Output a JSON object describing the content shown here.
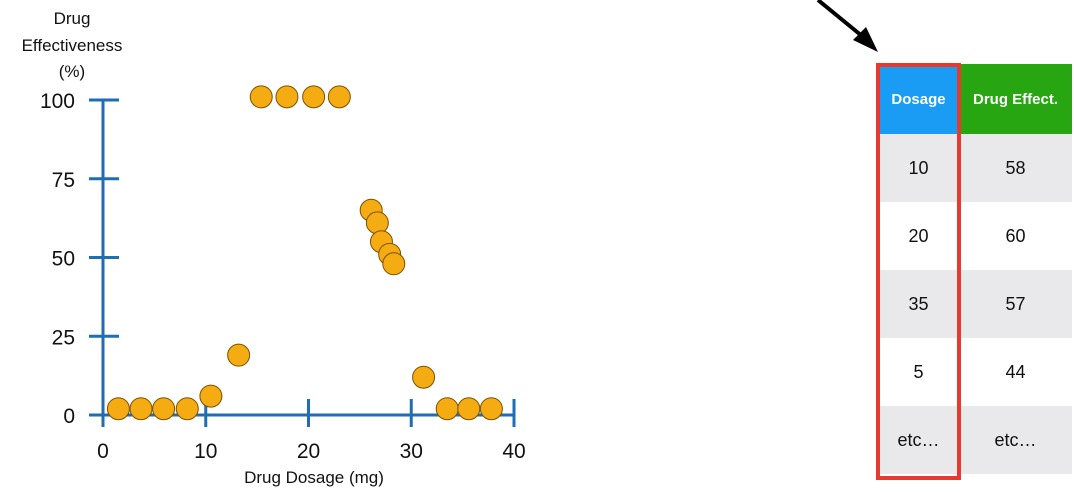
{
  "colors": {
    "axis": "#1f6db5",
    "point_fill": "#f5ab12",
    "point_stroke": "#7a5200",
    "dosage_header_bg": "#1a9cf5",
    "effect_header_bg": "#27a612",
    "highlight_border": "#e53a2c",
    "row_shaded": "#e9e9ec",
    "arrow": "#000000"
  },
  "chart_data": {
    "type": "scatter",
    "xlabel": "Drug Dosage (mg)",
    "ylabel_lines": [
      "Drug",
      "Effectiveness",
      "(%)"
    ],
    "xlim": [
      0,
      40
    ],
    "ylim": [
      0,
      100
    ],
    "x_ticks": [
      0,
      10,
      20,
      30,
      40
    ],
    "y_ticks": [
      0,
      25,
      50,
      75,
      100
    ],
    "grid": false,
    "points": [
      {
        "x": 1.5,
        "y": 2
      },
      {
        "x": 3.7,
        "y": 2
      },
      {
        "x": 5.9,
        "y": 2
      },
      {
        "x": 8.2,
        "y": 2
      },
      {
        "x": 10.5,
        "y": 6
      },
      {
        "x": 13.2,
        "y": 19
      },
      {
        "x": 15.4,
        "y": 101
      },
      {
        "x": 17.9,
        "y": 101
      },
      {
        "x": 20.5,
        "y": 101
      },
      {
        "x": 23.0,
        "y": 101
      },
      {
        "x": 26.1,
        "y": 65
      },
      {
        "x": 26.7,
        "y": 61
      },
      {
        "x": 27.1,
        "y": 55
      },
      {
        "x": 27.9,
        "y": 51
      },
      {
        "x": 28.3,
        "y": 48
      },
      {
        "x": 31.2,
        "y": 12
      },
      {
        "x": 33.5,
        "y": 2
      },
      {
        "x": 35.6,
        "y": 2
      },
      {
        "x": 37.8,
        "y": 2
      }
    ]
  },
  "table": {
    "headers": [
      "Dosage",
      "Drug Effect."
    ],
    "rows": [
      [
        "10",
        "58"
      ],
      [
        "20",
        "60"
      ],
      [
        "35",
        "57"
      ],
      [
        "5",
        "44"
      ],
      [
        "etc…",
        "etc…"
      ]
    ]
  }
}
